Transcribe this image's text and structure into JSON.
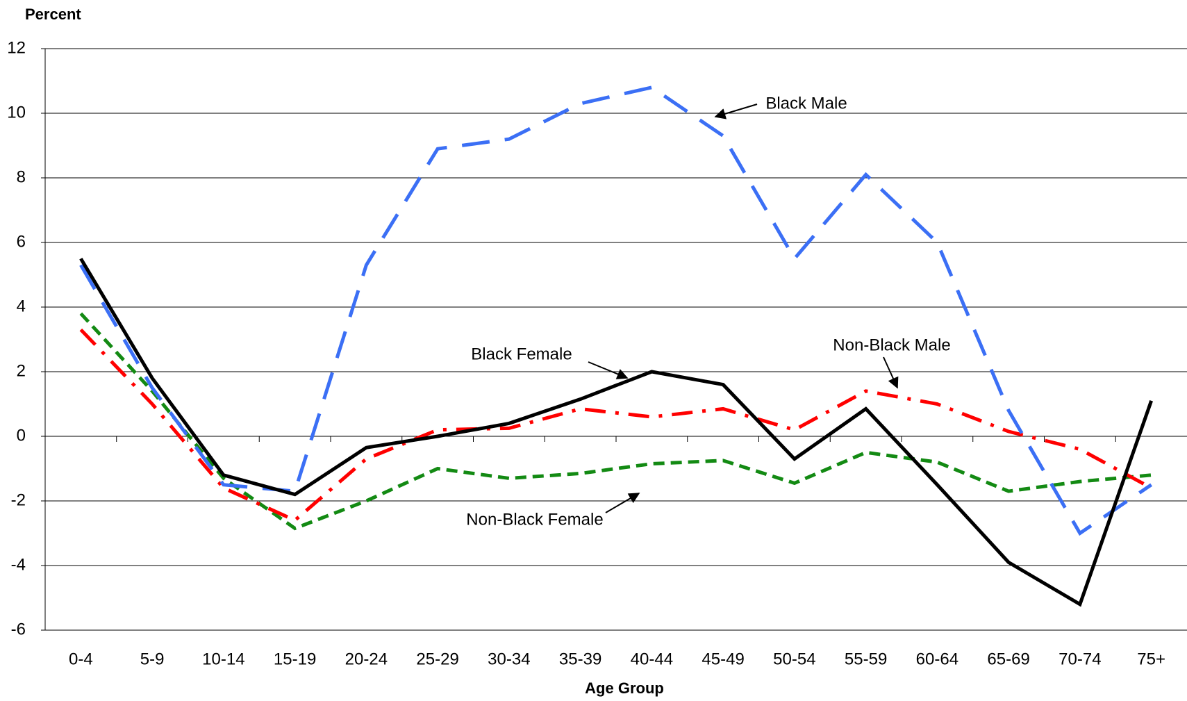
{
  "chart_data": {
    "type": "line",
    "y_label": "Percent",
    "x_label": "Age Group",
    "categories": [
      "0-4",
      "5-9",
      "10-14",
      "15-19",
      "20-24",
      "25-29",
      "30-34",
      "35-39",
      "40-44",
      "45-49",
      "50-54",
      "55-59",
      "60-64",
      "65-69",
      "70-74",
      "75+"
    ],
    "ylim": [
      -6,
      12
    ],
    "yticks": [
      -6,
      -4,
      -2,
      0,
      2,
      4,
      6,
      8,
      10,
      12
    ],
    "grid": true,
    "series": [
      {
        "name": "Black Male",
        "color": "#3b6ff5",
        "values": [
          5.3,
          1.5,
          -1.5,
          -1.7,
          5.3,
          8.9,
          9.2,
          10.3,
          10.8,
          9.3,
          5.5,
          8.1,
          6.0,
          0.8,
          -3.0,
          -1.5
        ]
      },
      {
        "name": "Black Female",
        "color": "#000000",
        "values": [
          5.5,
          1.8,
          -1.2,
          -1.8,
          -0.35,
          0.0,
          0.4,
          1.15,
          2.0,
          1.6,
          -0.7,
          0.85,
          -1.5,
          -3.9,
          -5.2,
          1.1
        ]
      },
      {
        "name": "Non-Black Male",
        "color": "#ff0000",
        "values": [
          3.3,
          1.0,
          -1.6,
          -2.6,
          -0.7,
          0.2,
          0.25,
          0.85,
          0.6,
          0.85,
          0.2,
          1.4,
          1.0,
          0.15,
          -0.4,
          -1.6
        ]
      },
      {
        "name": "Non-Black Female",
        "color": "#138a13",
        "values": [
          3.8,
          1.4,
          -1.3,
          -2.85,
          -2.0,
          -1.0,
          -1.3,
          -1.15,
          -0.85,
          -0.75,
          -1.45,
          -0.5,
          -0.8,
          -1.7,
          -1.4,
          -1.2
        ]
      }
    ]
  }
}
